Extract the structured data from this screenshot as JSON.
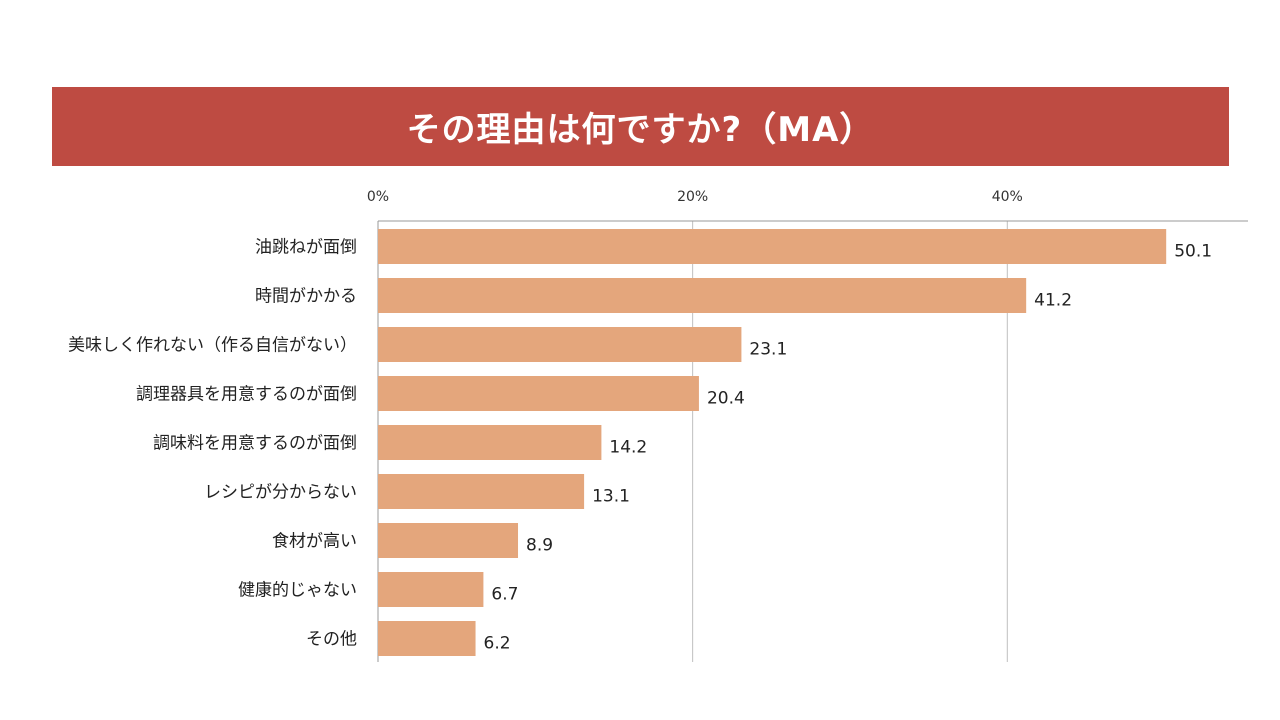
{
  "chart_data": {
    "type": "bar",
    "orientation": "horizontal",
    "title": "その理由は何ですか?（MA）",
    "categories": [
      "油跳ねが面倒",
      "時間がかかる",
      "美味しく作れない（作る自信がない）",
      "調理器具を用意するのが面倒",
      "調味料を用意するのが面倒",
      "レシピが分からない",
      "食材が高い",
      "健康的じゃない",
      "その他"
    ],
    "values": [
      50.1,
      41.2,
      23.1,
      20.4,
      14.2,
      13.1,
      8.9,
      6.7,
      6.2
    ],
    "value_labels": [
      "50.1",
      "41.2",
      "23.1",
      "20.4",
      "14.2",
      "13.1",
      "8.9",
      "6.7",
      "6.2"
    ],
    "xticks": [
      0,
      20,
      40
    ],
    "xtick_labels": [
      "0%",
      "20%",
      "40%"
    ],
    "xlim": [
      0,
      55.3
    ],
    "axis_position": "top",
    "grid": true,
    "colors": {
      "bar": "#e4a67c",
      "title_bg": "#be4b42",
      "title_text": "#ffffff",
      "grid": "#bfbfbf"
    }
  }
}
